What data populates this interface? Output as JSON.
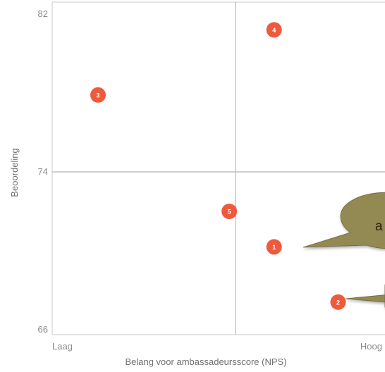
{
  "chart_data": {
    "type": "scatter",
    "title": "",
    "xlabel": "Belang voor ambassadeursscore (NPS)",
    "ylabel": "Beoordeling",
    "xlim": [
      0,
      10
    ],
    "ylim": [
      66,
      82
    ],
    "x_tick_labels": [
      {
        "x": 0,
        "label": "Laag"
      },
      {
        "x": 10,
        "label": "Hoog"
      }
    ],
    "y_ticks": [
      66,
      74,
      82
    ],
    "quadrant_lines": {
      "x": 5.6,
      "y": 74
    },
    "grid": false,
    "points": [
      {
        "label": "1",
        "x": 6.8,
        "y": 70.2
      },
      {
        "label": "2",
        "x": 8.8,
        "y": 67.4
      },
      {
        "label": "3",
        "x": 1.3,
        "y": 77.9
      },
      {
        "label": "4",
        "x": 6.8,
        "y": 81.2
      },
      {
        "label": "5",
        "x": 5.4,
        "y": 72.0
      }
    ],
    "point_color": "#ee5a3c",
    "callout_color": "#938953",
    "callouts": [
      {
        "text": "a",
        "target": "1"
      },
      {
        "text": "",
        "target": "2"
      }
    ]
  }
}
